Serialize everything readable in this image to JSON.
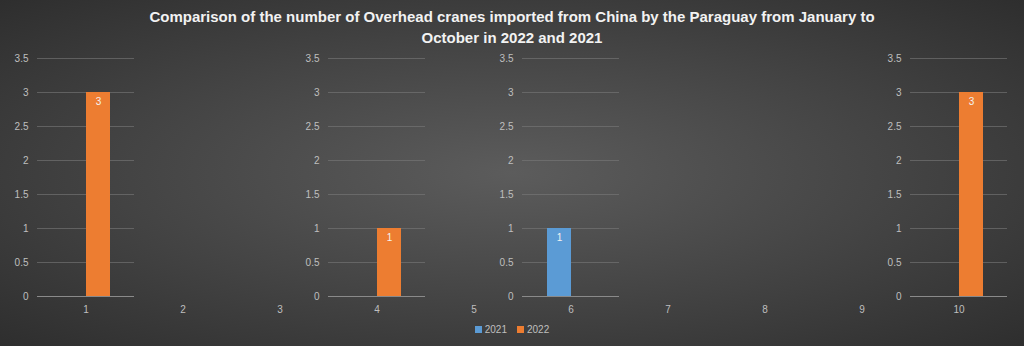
{
  "chart_data": {
    "type": "bar",
    "title": "Comparison of the number of Overhead cranes imported from China by the Paraguay from January to October in 2022 and 2021",
    "categories": [
      1,
      2,
      3,
      4,
      5,
      6,
      7,
      8,
      9,
      10
    ],
    "series": [
      {
        "name": "2021",
        "color": "#5b9bd5",
        "values": [
          null,
          null,
          null,
          null,
          null,
          1,
          null,
          null,
          null,
          null
        ]
      },
      {
        "name": "2022",
        "color": "#ed7d31",
        "values": [
          3,
          null,
          null,
          1,
          null,
          null,
          null,
          null,
          null,
          3
        ]
      }
    ],
    "ylim": [
      0,
      3.5
    ],
    "yticks": [
      0,
      0.5,
      1,
      1.5,
      2,
      2.5,
      3,
      3.5
    ],
    "grid": true,
    "data_labels": true,
    "legend": "bottom"
  }
}
